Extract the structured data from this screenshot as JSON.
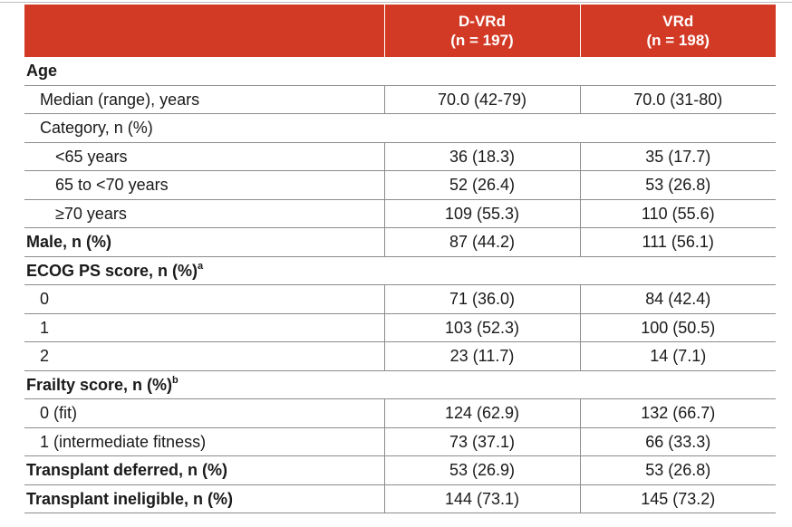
{
  "header": {
    "col1_name": "D-VRd",
    "col1_n": "(n = 197)",
    "col2_name": "VRd",
    "col2_n": "(n = 198)"
  },
  "rows": [
    {
      "label": "Age",
      "sup": "",
      "style": "bold",
      "v1": "",
      "v2": ""
    },
    {
      "label": "Median (range), years",
      "sup": "",
      "style": "ind1",
      "v1": "70.0 (42-79)",
      "v2": "70.0 (31-80)"
    },
    {
      "label": "Category, n (%)",
      "sup": "",
      "style": "ind1",
      "v1": "",
      "v2": ""
    },
    {
      "label": "<65 years",
      "sup": "",
      "style": "ind2",
      "v1": "36 (18.3)",
      "v2": "35 (17.7)"
    },
    {
      "label": "65 to <70 years",
      "sup": "",
      "style": "ind2",
      "v1": "52 (26.4)",
      "v2": "53 (26.8)"
    },
    {
      "label": "≥70 years",
      "sup": "",
      "style": "ind2",
      "v1": "109 (55.3)",
      "v2": "110 (55.6)"
    },
    {
      "label": "Male, n (%)",
      "sup": "",
      "style": "bold",
      "v1": "87 (44.2)",
      "v2": "111 (56.1)"
    },
    {
      "label": "ECOG PS score, n (%)",
      "sup": "a",
      "style": "bold",
      "v1": "",
      "v2": ""
    },
    {
      "label": "0",
      "sup": "",
      "style": "ind1",
      "v1": "71 (36.0)",
      "v2": "84 (42.4)"
    },
    {
      "label": "1",
      "sup": "",
      "style": "ind1",
      "v1": "103 (52.3)",
      "v2": "100 (50.5)"
    },
    {
      "label": "2",
      "sup": "",
      "style": "ind1",
      "v1": "23 (11.7)",
      "v2": "14 (7.1)"
    },
    {
      "label": "Frailty score, n (%)",
      "sup": "b",
      "style": "bold",
      "v1": "",
      "v2": ""
    },
    {
      "label": "0 (fit)",
      "sup": "",
      "style": "ind1",
      "v1": "124 (62.9)",
      "v2": "132 (66.7)"
    },
    {
      "label": "1 (intermediate fitness)",
      "sup": "",
      "style": "ind1",
      "v1": "73 (37.1)",
      "v2": "66 (33.3)"
    },
    {
      "label": "Transplant deferred, n (%)",
      "sup": "",
      "style": "bold",
      "v1": "53 (26.9)",
      "v2": "53 (26.8)"
    },
    {
      "label": "Transplant ineligible, n (%)",
      "sup": "",
      "style": "bold",
      "v1": "144 (73.1)",
      "v2": "145 (73.2)"
    }
  ],
  "colors": {
    "header_bg": "#d33a26",
    "header_text": "#ffffff",
    "rule": "#8c8c8c"
  }
}
